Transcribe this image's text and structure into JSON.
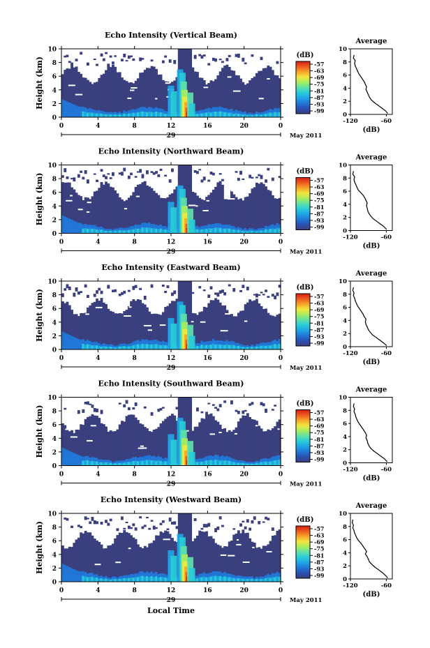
{
  "x_axis_title": "Local Time",
  "month_label": "May 2011",
  "legend_unit": "(dB)",
  "average_title": "Average",
  "average_xlabel": "(dB)",
  "ylabel": "Height (km)",
  "colorbar_ticks": [
    "-57",
    "-63",
    "-69",
    "-75",
    "-81",
    "-87",
    "-93",
    "-99"
  ],
  "colors": {
    "background": "#3a3f7e",
    "colormap": [
      "#3a3f7e",
      "#2b4fb0",
      "#2177d8",
      "#1fa5e6",
      "#28ccd8",
      "#5fe0a8",
      "#a8ec5e",
      "#f2e640",
      "#f7a42a",
      "#ee5a1e",
      "#d42012"
    ]
  },
  "chart_data": [
    {
      "type": "heatmap",
      "title": "Echo Intensity (Vertical Beam)",
      "xlabel": "",
      "ylabel": "Height (km)",
      "xlim": [
        0,
        24
      ],
      "ylim": [
        0,
        10
      ],
      "x_ticks": [
        "0",
        "4",
        "8",
        "12",
        "16",
        "20",
        "0"
      ],
      "y_ticks": [
        "0",
        "2",
        "4",
        "6",
        "8",
        "10"
      ],
      "date_label": "29",
      "colorbar": {
        "label": "(dB)",
        "ticks": [
          -57,
          -63,
          -69,
          -75,
          -81,
          -87,
          -93,
          -99
        ]
      },
      "average_profile": {
        "title": "Average",
        "xlabel": "(dB)",
        "xlim": [
          -120,
          -50
        ],
        "x_ticks": [
          "-120",
          "-60"
        ],
        "y_ticks": [
          "0",
          "2",
          "4",
          "6",
          "8",
          "10"
        ],
        "values": [
          [
            -58,
            0.2
          ],
          [
            -62,
            0.6
          ],
          [
            -68,
            1.0
          ],
          [
            -74,
            1.4
          ],
          [
            -80,
            1.8
          ],
          [
            -85,
            2.2
          ],
          [
            -88,
            2.6
          ],
          [
            -90,
            3.0
          ],
          [
            -92,
            3.4
          ],
          [
            -94,
            3.8
          ],
          [
            -93,
            4.2
          ],
          [
            -95,
            4.6
          ],
          [
            -97,
            5.0
          ],
          [
            -100,
            5.4
          ],
          [
            -103,
            5.8
          ],
          [
            -106,
            6.2
          ],
          [
            -108,
            6.6
          ],
          [
            -110,
            7.0
          ],
          [
            -112,
            7.4
          ],
          [
            -113,
            7.8
          ],
          [
            -112,
            8.2
          ],
          [
            -115,
            8.6
          ],
          [
            -114,
            9.0
          ]
        ]
      }
    },
    {
      "type": "heatmap",
      "title": "Echo Intensity (Northward Beam)",
      "xlabel": "",
      "ylabel": "Height (km)",
      "xlim": [
        0,
        24
      ],
      "ylim": [
        0,
        10
      ],
      "x_ticks": [
        "0",
        "4",
        "8",
        "12",
        "16",
        "20",
        "0"
      ],
      "y_ticks": [
        "0",
        "2",
        "4",
        "6",
        "8",
        "10"
      ],
      "date_label": "29",
      "colorbar": {
        "label": "(dB)",
        "ticks": [
          -57,
          -63,
          -69,
          -75,
          -81,
          -87,
          -93,
          -99
        ]
      },
      "average_profile": {
        "title": "Average",
        "xlabel": "(dB)",
        "xlim": [
          -120,
          -50
        ],
        "x_ticks": [
          "-120",
          "-60"
        ],
        "y_ticks": [
          "0",
          "2",
          "4",
          "6",
          "8",
          "10"
        ],
        "values": [
          [
            -60,
            0.2
          ],
          [
            -64,
            0.6
          ],
          [
            -70,
            1.0
          ],
          [
            -76,
            1.4
          ],
          [
            -82,
            1.8
          ],
          [
            -86,
            2.2
          ],
          [
            -89,
            2.6
          ],
          [
            -91,
            3.0
          ],
          [
            -92,
            3.4
          ],
          [
            -93,
            3.8
          ],
          [
            -92,
            4.2
          ],
          [
            -94,
            4.6
          ],
          [
            -96,
            5.0
          ],
          [
            -99,
            5.4
          ],
          [
            -103,
            5.8
          ],
          [
            -107,
            6.2
          ],
          [
            -109,
            6.6
          ],
          [
            -111,
            7.0
          ],
          [
            -113,
            7.4
          ],
          [
            -114,
            7.8
          ],
          [
            -113,
            8.2
          ],
          [
            -116,
            8.6
          ],
          [
            -115,
            9.0
          ]
        ]
      }
    },
    {
      "type": "heatmap",
      "title": "Echo Intensity (Eastward Beam)",
      "xlabel": "",
      "ylabel": "Height (km)",
      "xlim": [
        0,
        24
      ],
      "ylim": [
        0,
        10
      ],
      "x_ticks": [
        "0",
        "4",
        "8",
        "12",
        "16",
        "20",
        "0"
      ],
      "y_ticks": [
        "0",
        "2",
        "4",
        "6",
        "8",
        "10"
      ],
      "date_label": "29",
      "colorbar": {
        "label": "(dB)",
        "ticks": [
          -57,
          -63,
          -69,
          -75,
          -81,
          -87,
          -93,
          -99
        ]
      },
      "average_profile": {
        "title": "Average",
        "xlabel": "(dB)",
        "xlim": [
          -120,
          -50
        ],
        "x_ticks": [
          "-120",
          "-60"
        ],
        "y_ticks": [
          "0",
          "2",
          "4",
          "6",
          "8",
          "10"
        ],
        "values": [
          [
            -60,
            0.2
          ],
          [
            -65,
            0.6
          ],
          [
            -71,
            1.0
          ],
          [
            -77,
            1.4
          ],
          [
            -83,
            1.8
          ],
          [
            -87,
            2.2
          ],
          [
            -90,
            2.6
          ],
          [
            -92,
            3.0
          ],
          [
            -94,
            3.4
          ],
          [
            -95,
            3.8
          ],
          [
            -94,
            4.2
          ],
          [
            -97,
            4.6
          ],
          [
            -99,
            5.0
          ],
          [
            -102,
            5.4
          ],
          [
            -105,
            5.8
          ],
          [
            -108,
            6.2
          ],
          [
            -110,
            6.6
          ],
          [
            -112,
            7.0
          ],
          [
            -113,
            7.4
          ],
          [
            -115,
            7.8
          ],
          [
            -114,
            8.2
          ],
          [
            -116,
            8.6
          ],
          [
            -115,
            9.0
          ]
        ]
      }
    },
    {
      "type": "heatmap",
      "title": "Echo Intensity (Southward Beam)",
      "xlabel": "",
      "ylabel": "Height (km)",
      "xlim": [
        0,
        24
      ],
      "ylim": [
        0,
        10
      ],
      "x_ticks": [
        "0",
        "4",
        "8",
        "12",
        "16",
        "20",
        "0"
      ],
      "y_ticks": [
        "0",
        "2",
        "4",
        "6",
        "8",
        "10"
      ],
      "date_label": "29",
      "colorbar": {
        "label": "(dB)",
        "ticks": [
          -57,
          -63,
          -69,
          -75,
          -81,
          -87,
          -93,
          -99
        ]
      },
      "average_profile": {
        "title": "Average",
        "xlabel": "(dB)",
        "xlim": [
          -120,
          -50
        ],
        "x_ticks": [
          "-120",
          "-60"
        ],
        "y_ticks": [
          "0",
          "2",
          "4",
          "6",
          "8",
          "10"
        ],
        "values": [
          [
            -59,
            0.2
          ],
          [
            -63,
            0.6
          ],
          [
            -69,
            1.0
          ],
          [
            -75,
            1.4
          ],
          [
            -81,
            1.8
          ],
          [
            -86,
            2.2
          ],
          [
            -89,
            2.6
          ],
          [
            -91,
            3.0
          ],
          [
            -92,
            3.4
          ],
          [
            -94,
            3.8
          ],
          [
            -93,
            4.2
          ],
          [
            -95,
            4.6
          ],
          [
            -98,
            5.0
          ],
          [
            -101,
            5.4
          ],
          [
            -104,
            5.8
          ],
          [
            -107,
            6.2
          ],
          [
            -109,
            6.6
          ],
          [
            -111,
            7.0
          ],
          [
            -112,
            7.4
          ],
          [
            -114,
            7.8
          ],
          [
            -113,
            8.2
          ],
          [
            -115,
            8.6
          ],
          [
            -114,
            9.0
          ]
        ]
      }
    },
    {
      "type": "heatmap",
      "title": "Echo Intensity (Westward Beam)",
      "xlabel": "Local Time",
      "ylabel": "Height (km)",
      "xlim": [
        0,
        24
      ],
      "ylim": [
        0,
        10
      ],
      "x_ticks": [
        "0",
        "4",
        "8",
        "12",
        "16",
        "20",
        "0"
      ],
      "y_ticks": [
        "0",
        "2",
        "4",
        "6",
        "8",
        "10"
      ],
      "date_label": "29",
      "colorbar": {
        "label": "(dB)",
        "ticks": [
          -57,
          -63,
          -69,
          -75,
          -81,
          -87,
          -93,
          -99
        ]
      },
      "average_profile": {
        "title": "Average",
        "xlabel": "(dB)",
        "xlim": [
          -120,
          -50
        ],
        "x_ticks": [
          "-120",
          "-60"
        ],
        "y_ticks": [
          "0",
          "2",
          "4",
          "6",
          "8",
          "10"
        ],
        "values": [
          [
            -58,
            0.2
          ],
          [
            -62,
            0.6
          ],
          [
            -67,
            1.0
          ],
          [
            -73,
            1.4
          ],
          [
            -79,
            1.8
          ],
          [
            -84,
            2.2
          ],
          [
            -88,
            2.6
          ],
          [
            -90,
            3.0
          ],
          [
            -92,
            3.4
          ],
          [
            -95,
            3.8
          ],
          [
            -93,
            4.2
          ],
          [
            -96,
            4.6
          ],
          [
            -99,
            5.0
          ],
          [
            -102,
            5.4
          ],
          [
            -106,
            5.8
          ],
          [
            -109,
            6.2
          ],
          [
            -111,
            6.6
          ],
          [
            -113,
            7.0
          ],
          [
            -114,
            7.4
          ],
          [
            -116,
            7.8
          ],
          [
            -115,
            8.2
          ],
          [
            -117,
            8.6
          ],
          [
            -116,
            9.0
          ]
        ]
      }
    }
  ]
}
